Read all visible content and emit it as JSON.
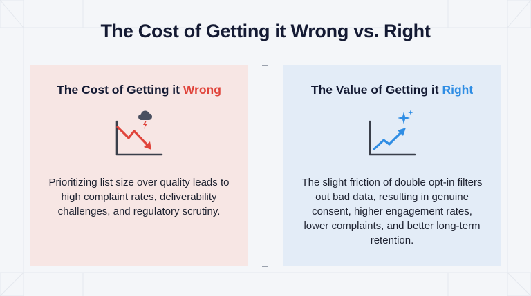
{
  "title": "The Cost of Getting it Wrong vs. Right",
  "left_panel": {
    "heading_prefix": "The Cost of Getting it ",
    "heading_accent": "Wrong",
    "body": "Prioritizing list size over quality leads to high complaint rates, deliverability challenges, and regulatory scrutiny.",
    "icon": "declining-chart-with-storm-cloud-icon",
    "accent_color": "#e0443b",
    "background": "#f7e6e4"
  },
  "right_panel": {
    "heading_prefix": "The Value of Getting it ",
    "heading_accent": "Right",
    "body": "The slight friction of double opt-in filters out bad data, resulting in genuine consent, higher engagement rates, lower complaints, and better long-term retention.",
    "icon": "rising-chart-with-sparkle-icon",
    "accent_color": "#2f8de4",
    "background": "#e3ecf7"
  }
}
